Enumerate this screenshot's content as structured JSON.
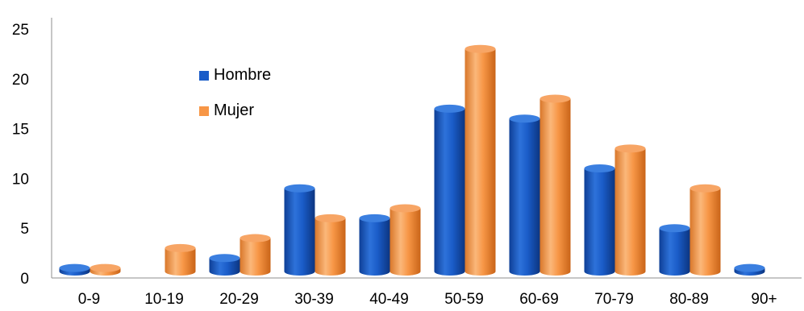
{
  "chart_data": {
    "type": "bar",
    "categories": [
      "0-9",
      "10-19",
      "20-29",
      "30-39",
      "40-49",
      "50-59",
      "60-69",
      "70-79",
      "80-89",
      "90+"
    ],
    "series": [
      {
        "name": "Hombre",
        "values": [
          1,
          0,
          2,
          9,
          6,
          17,
          16,
          11,
          5,
          1
        ],
        "color": "#1A5CC8"
      },
      {
        "name": "Mujer",
        "values": [
          1,
          3,
          4,
          6,
          7,
          23,
          18,
          13,
          9,
          0
        ],
        "color": "#F79646"
      }
    ],
    "yticks": [
      0,
      5,
      10,
      15,
      20,
      25
    ],
    "ylim": [
      0,
      25
    ],
    "legend_position": "top-left",
    "style": "3d-cylinder",
    "grid": false
  }
}
